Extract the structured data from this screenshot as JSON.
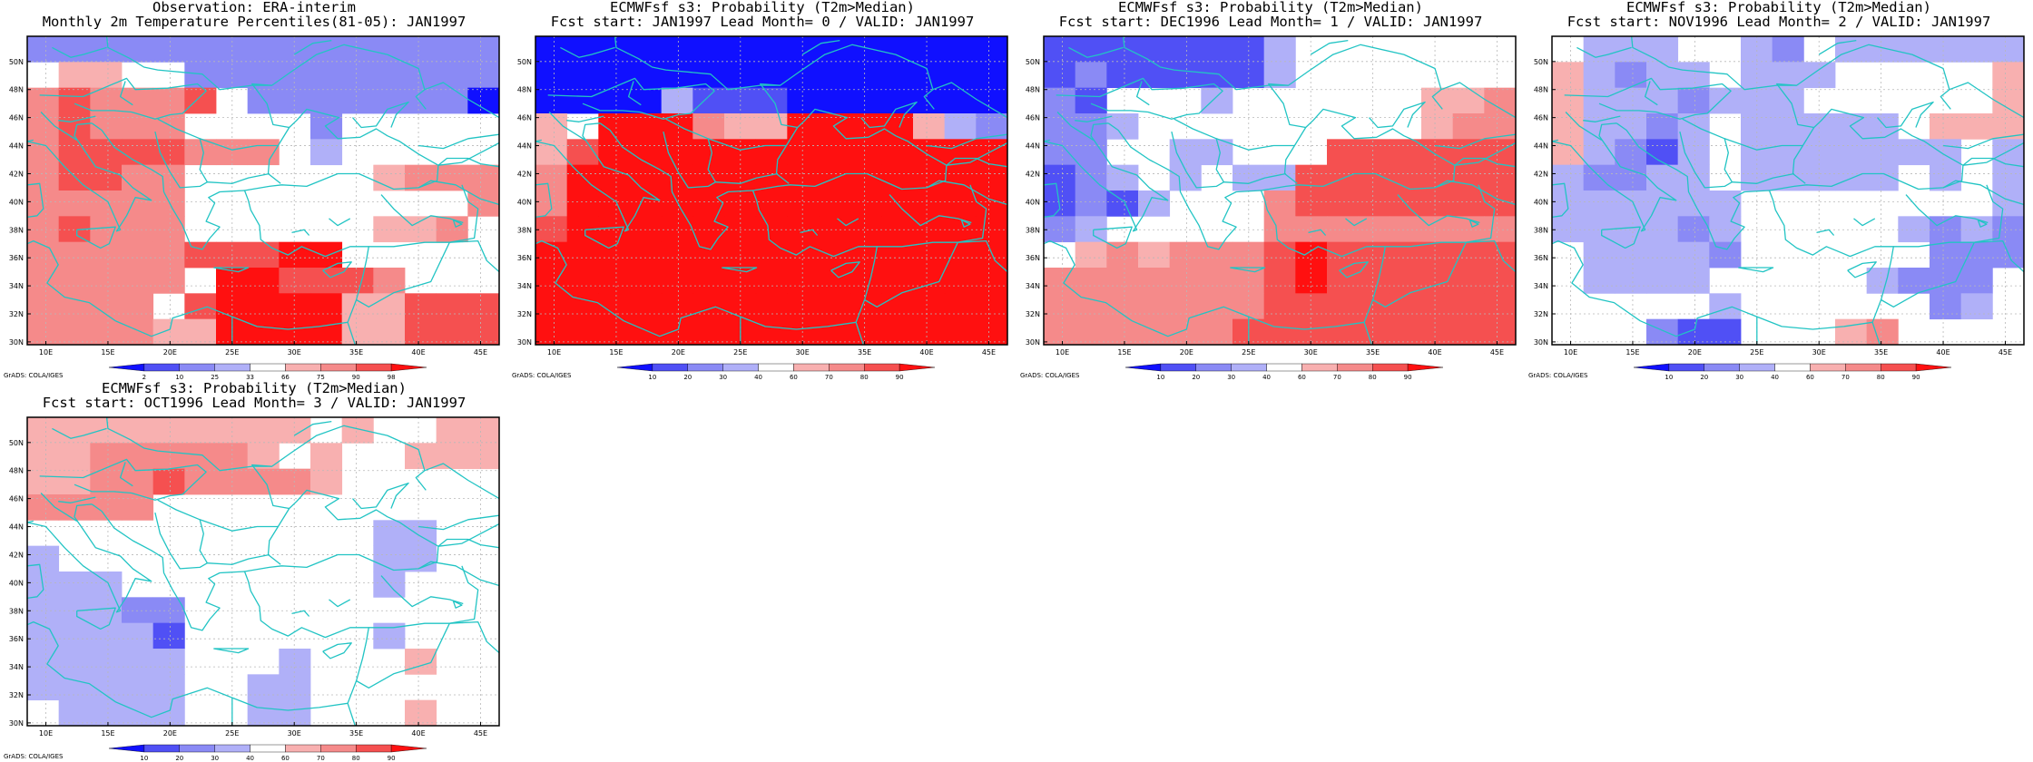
{
  "colors": {
    "coast": "#22c4c4",
    "grid": "#b8b8b8",
    "frame": "#000000",
    "scale": [
      "#1010ff",
      "#5050f5",
      "#8a8af5",
      "#b0b0f8",
      "#ffffff",
      "#f8b0b0",
      "#f58a8a",
      "#f55050",
      "#ff1010"
    ]
  },
  "axes": {
    "lon_labels": [
      "10E",
      "15E",
      "20E",
      "25E",
      "30E",
      "35E",
      "40E",
      "45E"
    ],
    "lon_values": [
      10,
      15,
      20,
      25,
      30,
      35,
      40,
      45
    ],
    "lat_labels": [
      "30N",
      "32N",
      "34N",
      "36N",
      "38N",
      "40N",
      "42N",
      "44N",
      "46N",
      "48N",
      "50N"
    ],
    "lat_values": [
      30,
      32,
      34,
      36,
      38,
      40,
      42,
      44,
      46,
      48,
      50
    ],
    "lon_range": [
      8.5,
      46.5
    ],
    "lat_range": [
      29.8,
      51.8
    ]
  },
  "credit": "GrADS: COLA/IGES",
  "panels": [
    {
      "title1": "Observation: ERA-interim",
      "title2": "Monthly 2m Temperature Percentiles(81-05): JAN1997",
      "colorbar_labels": [
        "2",
        "10",
        "25",
        "33",
        "66",
        "75",
        "90",
        "98"
      ],
      "grid": [
        "222222222222222",
        "455442222222222",
        "676667422222220",
        "676664444244444",
        "677776664344444",
        "677664444445666",
        "666664444444446",
        "676664444445564",
        "666667778844444",
        "666664887776444",
        "666647888855777",
        "666655888855777"
      ]
    },
    {
      "title1": "ECMWFsf s3: Probability (T2m>Median)",
      "title2": "Fcst start: JAN1997  Lead Month= 0 / VALID: JAN1997",
      "colorbar_labels": [
        "10",
        "20",
        "30",
        "40",
        "60",
        "70",
        "80",
        "90"
      ],
      "grid": [
        "000000000000000",
        "000000000000000",
        "000031110000000",
        "548886558888532",
        "578888888888888",
        "688888888888888",
        "688888888888888",
        "788888888888888",
        "888888888888888",
        "888888888888888",
        "888888888888888",
        "888888888888888"
      ]
    },
    {
      "title1": "ECMWFsf s3: Probability (T2m>Median)",
      "title2": "Fcst start: DEC1996  Lead Month= 1 / VALID: JAN1997",
      "colorbar_labels": [
        "10",
        "20",
        "30",
        "40",
        "60",
        "70",
        "80",
        "90"
      ],
      "grid": [
        "111111134444444",
        "121111134444444",
        "214443444444556",
        "223444444444566",
        "224433444777777",
        "123434337777777",
        "121344467777777",
        "234444466666666",
        "456566678777777",
        "666666678777777",
        "666666677777777",
        "666666777777777"
      ]
    },
    {
      "title1": "ECMWFsf s3: Probability (T2m>Median)",
      "title2": "Fcst start: NOV1996  Lead Month= 2 / VALID: JAN1997",
      "colorbar_labels": [
        "10",
        "20",
        "30",
        "40",
        "60",
        "70",
        "80",
        "90"
      ],
      "grid": [
        "433344324333333",
        "532334333444445",
        "533323334444445",
        "533234333334555",
        "532134333333343",
        "322334333334343",
        "333333444444443",
        "333323444443232",
        "433332444444222",
        "433334444432224",
        "444443444444234",
        "444211444564444"
      ]
    },
    {
      "title1": "ECMWFsf s3: Probability (T2m>Median)",
      "title2": "Fcst start: OCT1996  Lead Month= 3 / VALID: JAN1997",
      "colorbar_labels": [
        "10",
        "20",
        "30",
        "40",
        "60",
        "70",
        "80",
        "90"
      ],
      "grid": [
        "555555555454455",
        "556666654544555",
        "556676666544444",
        "666644444444444",
        "444444444443344",
        "344444444443344",
        "333444444443444",
        "333224444444444",
        "333314444443444",
        "333334443444544",
        "333334433444444",
        "433334433444544"
      ]
    }
  ]
}
